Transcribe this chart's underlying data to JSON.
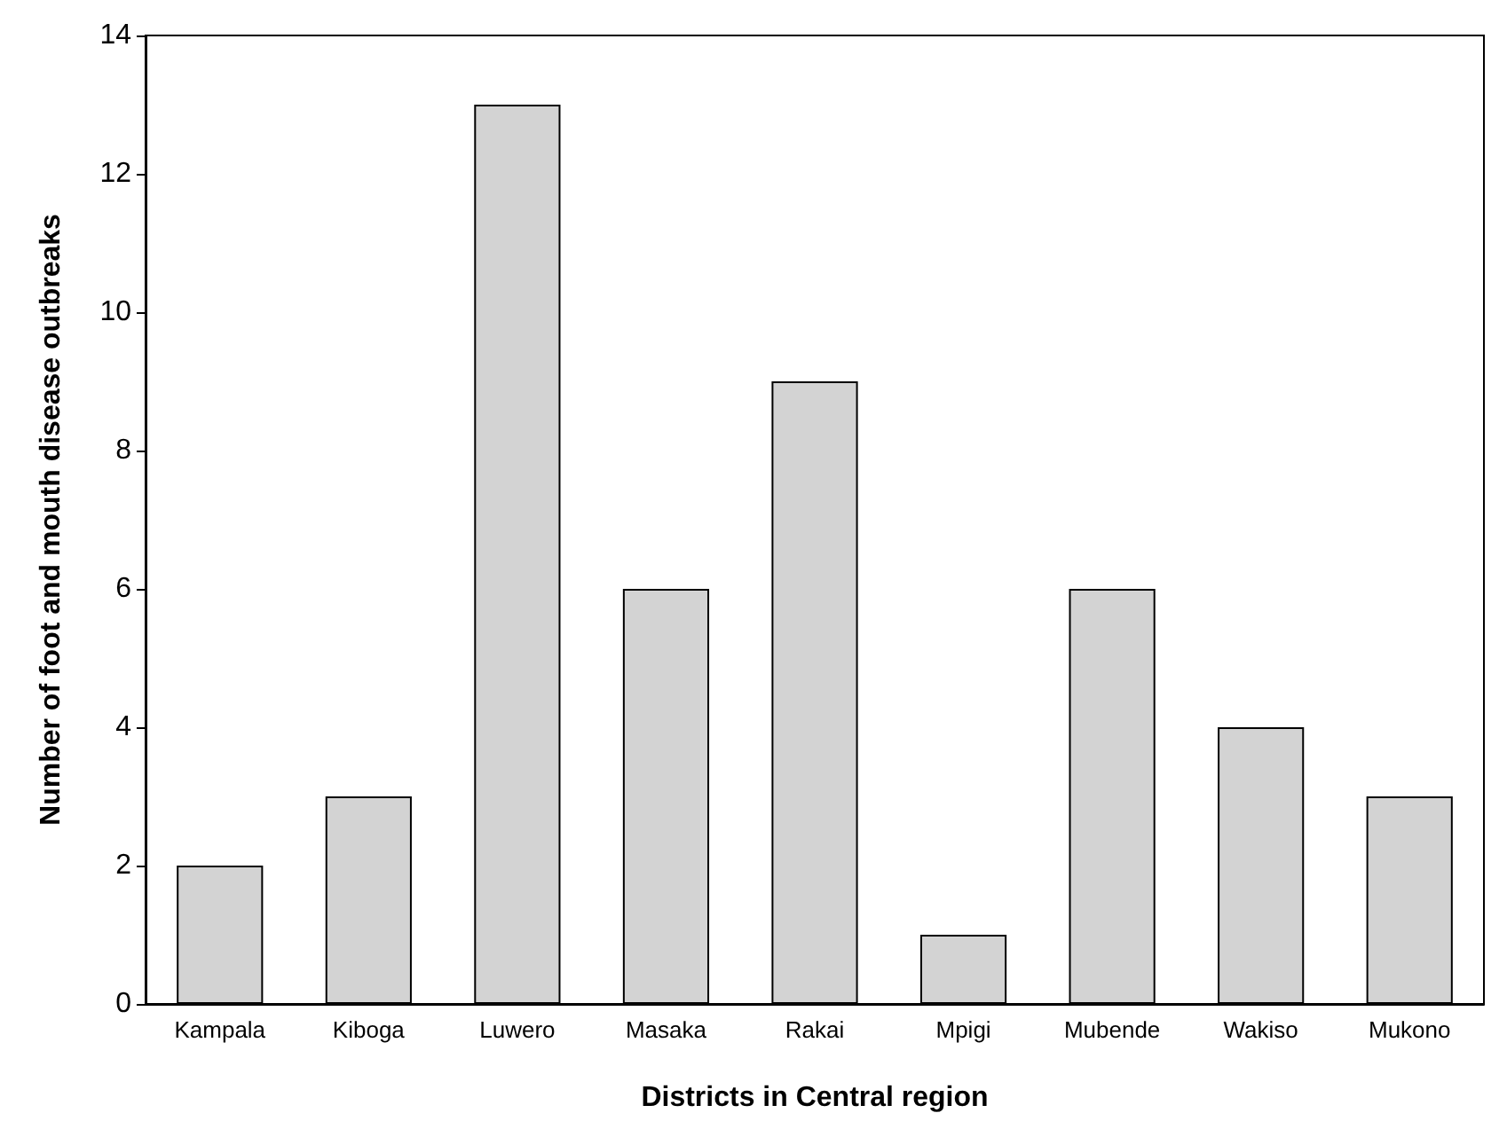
{
  "chart_data": {
    "type": "bar",
    "xlabel": "Districts in Central region",
    "ylabel": "Number of foot and mouth disease outbreaks",
    "categories": [
      "Kampala",
      "Kiboga",
      "Luwero",
      "Masaka",
      "Rakai",
      "Mpigi",
      "Mubende",
      "Wakiso",
      "Mukono"
    ],
    "values": [
      2,
      3,
      13,
      6,
      9,
      1,
      6,
      4,
      3
    ],
    "color": "#d3d3d3",
    "ylim": [
      0,
      14
    ],
    "yticks": [
      0,
      2,
      4,
      6,
      8,
      10,
      12,
      14
    ],
    "grid": false
  }
}
